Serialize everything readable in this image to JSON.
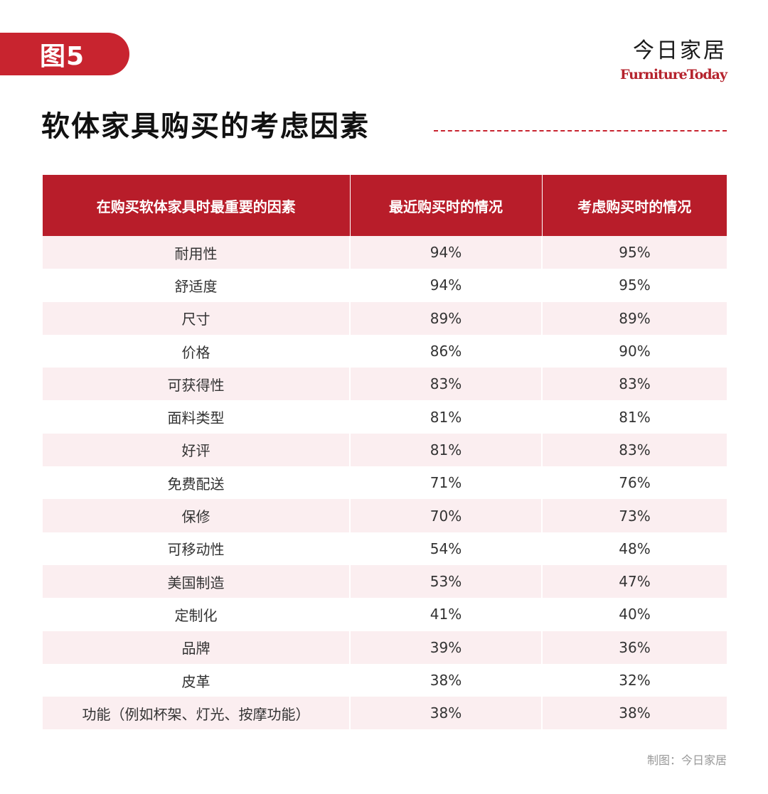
{
  "header": {
    "figure_label": "图5",
    "brand_cn": "今日家居",
    "brand_en": "FurnitureToday",
    "accent_color": "#c8242f"
  },
  "title": "软体家具购买的考虑因素",
  "chart_data": {
    "type": "table",
    "columns": [
      "在购买软体家具时最重要的因素",
      "最近购买时的情况",
      "考虑购买时的情况"
    ],
    "rows": [
      {
        "factor": "耐用性",
        "recent": "94%",
        "considering": "95%"
      },
      {
        "factor": "舒适度",
        "recent": "94%",
        "considering": "95%"
      },
      {
        "factor": "尺寸",
        "recent": "89%",
        "considering": "89%"
      },
      {
        "factor": "价格",
        "recent": "86%",
        "considering": "90%"
      },
      {
        "factor": "可获得性",
        "recent": "83%",
        "considering": "83%"
      },
      {
        "factor": "面料类型",
        "recent": "81%",
        "considering": "81%"
      },
      {
        "factor": "好评",
        "recent": "81%",
        "considering": "83%"
      },
      {
        "factor": "免费配送",
        "recent": "71%",
        "considering": "76%"
      },
      {
        "factor": "保修",
        "recent": "70%",
        "considering": "73%"
      },
      {
        "factor": "可移动性",
        "recent": "54%",
        "considering": "48%"
      },
      {
        "factor": "美国制造",
        "recent": "53%",
        "considering": "47%"
      },
      {
        "factor": "定制化",
        "recent": "41%",
        "considering": "40%"
      },
      {
        "factor": "品牌",
        "recent": "39%",
        "considering": "36%"
      },
      {
        "factor": "皮革",
        "recent": "38%",
        "considering": "32%"
      },
      {
        "factor": "功能（例如杯架、灯光、按摩功能）",
        "recent": "38%",
        "considering": "38%"
      }
    ]
  },
  "credit": "制图：今日家居"
}
